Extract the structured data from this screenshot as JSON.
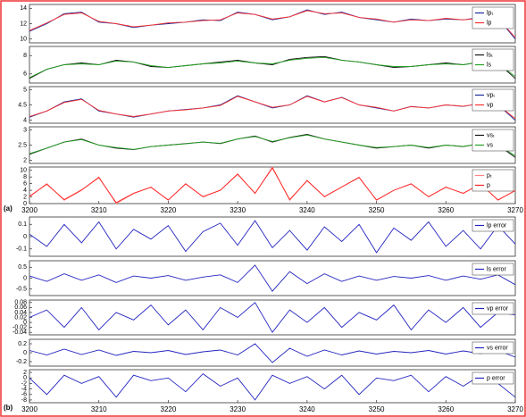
{
  "chart_data": [
    {
      "type": "line",
      "x": [
        3200,
        3202.5,
        3205,
        3207.5,
        3210,
        3212.5,
        3215,
        3217.5,
        3220,
        3222.5,
        3225,
        3227.5,
        3230,
        3232.5,
        3235,
        3237.5,
        3240,
        3242.5,
        3245,
        3247.5,
        3250,
        3252.5,
        3255,
        3257.5,
        3260,
        3262.5,
        3265,
        3267.5,
        3270
      ],
      "xlim": [
        3200,
        3270
      ],
      "ylim": [
        9.5,
        14.5
      ],
      "yticks": [
        10,
        12,
        14
      ],
      "series": [
        {
          "name": "lpₜ",
          "color": "#1a2a9a",
          "values": [
            11,
            12,
            13.3,
            13.5,
            12.2,
            12,
            11.5,
            11.8,
            12,
            12.2,
            12.5,
            12.4,
            13.5,
            13.2,
            12.5,
            12.9,
            13.8,
            13.2,
            13.5,
            12.8,
            12.5,
            12.2,
            12.6,
            12.4,
            12.6,
            12.5,
            12.8,
            12.7,
            10
          ]
        },
        {
          "name": "lp",
          "color": "#ff3030",
          "values": [
            11.1,
            12.1,
            13.2,
            13.4,
            12.3,
            12,
            11.6,
            11.8,
            12.1,
            12.2,
            12.4,
            12.5,
            13.4,
            13.2,
            12.6,
            12.9,
            13.7,
            13.3,
            13.4,
            12.8,
            12.6,
            12.2,
            12.5,
            12.4,
            12.7,
            12.5,
            12.7,
            12.7,
            10.2
          ]
        }
      ]
    },
    {
      "type": "line",
      "x": [
        3200,
        3202.5,
        3205,
        3207.5,
        3210,
        3212.5,
        3215,
        3217.5,
        3220,
        3222.5,
        3225,
        3227.5,
        3230,
        3232.5,
        3235,
        3237.5,
        3240,
        3242.5,
        3245,
        3247.5,
        3250,
        3252.5,
        3255,
        3257.5,
        3260,
        3262.5,
        3265,
        3267.5,
        3270
      ],
      "xlim": [
        3200,
        3270
      ],
      "ylim": [
        5,
        9
      ],
      "yticks": [
        6,
        8
      ],
      "series": [
        {
          "name": "lsₜ",
          "color": "#111111",
          "values": [
            5.5,
            6.5,
            7,
            7.2,
            7,
            7.5,
            7.3,
            6.8,
            6.7,
            6.9,
            7.1,
            7.3,
            7.5,
            7.2,
            7,
            7.6,
            7.8,
            7.9,
            7.5,
            7.3,
            7,
            6.7,
            6.8,
            7,
            7.2,
            7,
            7.3,
            7.2,
            5.5
          ]
        },
        {
          "name": "ls",
          "color": "#22a022",
          "values": [
            5.6,
            6.5,
            7,
            7.1,
            7,
            7.4,
            7.3,
            6.9,
            6.7,
            6.9,
            7.1,
            7.2,
            7.4,
            7.2,
            7.1,
            7.5,
            7.7,
            7.8,
            7.5,
            7.3,
            7,
            6.8,
            6.8,
            7,
            7.1,
            7,
            7.3,
            7.2,
            5.7
          ]
        }
      ]
    },
    {
      "type": "line",
      "x": [
        3200,
        3202.5,
        3205,
        3207.5,
        3210,
        3212.5,
        3215,
        3217.5,
        3220,
        3222.5,
        3225,
        3227.5,
        3230,
        3232.5,
        3235,
        3237.5,
        3240,
        3242.5,
        3245,
        3247.5,
        3250,
        3252.5,
        3255,
        3257.5,
        3260,
        3262.5,
        3265,
        3267.5,
        3270
      ],
      "xlim": [
        3200,
        3270
      ],
      "ylim": [
        3.9,
        5.1
      ],
      "yticks": [
        4,
        4.5,
        5
      ],
      "series": [
        {
          "name": "vpₜ",
          "color": "#1a2a9a",
          "values": [
            4.1,
            4.3,
            4.6,
            4.7,
            4.3,
            4.2,
            4.1,
            4.2,
            4.3,
            4.35,
            4.4,
            4.5,
            4.8,
            4.6,
            4.4,
            4.5,
            4.8,
            4.6,
            4.75,
            4.5,
            4.4,
            4.3,
            4.45,
            4.4,
            4.5,
            4.45,
            4.55,
            4.5,
            4
          ]
        },
        {
          "name": "vp",
          "color": "#ff3030",
          "values": [
            4.12,
            4.3,
            4.58,
            4.68,
            4.32,
            4.2,
            4.12,
            4.2,
            4.3,
            4.34,
            4.4,
            4.48,
            4.78,
            4.6,
            4.42,
            4.5,
            4.78,
            4.6,
            4.74,
            4.5,
            4.42,
            4.3,
            4.44,
            4.4,
            4.5,
            4.46,
            4.54,
            4.5,
            4.05
          ]
        }
      ]
    },
    {
      "type": "line",
      "x": [
        3200,
        3202.5,
        3205,
        3207.5,
        3210,
        3212.5,
        3215,
        3217.5,
        3220,
        3222.5,
        3225,
        3227.5,
        3230,
        3232.5,
        3235,
        3237.5,
        3240,
        3242.5,
        3245,
        3247.5,
        3250,
        3252.5,
        3255,
        3257.5,
        3260,
        3262.5,
        3265,
        3267.5,
        3270
      ],
      "xlim": [
        3200,
        3270
      ],
      "ylim": [
        1.9,
        3.1
      ],
      "yticks": [
        2,
        2.5,
        3
      ],
      "series": [
        {
          "name": "vsₜ",
          "color": "#111111",
          "values": [
            2.2,
            2.4,
            2.6,
            2.7,
            2.5,
            2.4,
            2.35,
            2.45,
            2.5,
            2.55,
            2.6,
            2.55,
            2.7,
            2.8,
            2.6,
            2.75,
            2.85,
            2.7,
            2.6,
            2.5,
            2.4,
            2.45,
            2.5,
            2.4,
            2.5,
            2.45,
            2.55,
            2.5,
            2.1
          ]
        },
        {
          "name": "vs",
          "color": "#22a022",
          "values": [
            2.22,
            2.4,
            2.6,
            2.68,
            2.5,
            2.42,
            2.36,
            2.45,
            2.5,
            2.54,
            2.6,
            2.56,
            2.7,
            2.78,
            2.62,
            2.74,
            2.83,
            2.7,
            2.6,
            2.5,
            2.42,
            2.45,
            2.5,
            2.42,
            2.5,
            2.46,
            2.55,
            2.5,
            2.15
          ]
        }
      ]
    },
    {
      "type": "line",
      "label": "(a)",
      "x": [
        3200,
        3202.5,
        3205,
        3207.5,
        3210,
        3212.5,
        3215,
        3217.5,
        3220,
        3222.5,
        3225,
        3227.5,
        3230,
        3232.5,
        3235,
        3237.5,
        3240,
        3242.5,
        3245,
        3247.5,
        3250,
        3252.5,
        3255,
        3257.5,
        3260,
        3262.5,
        3265,
        3267.5,
        3270
      ],
      "xlim": [
        3200,
        3270
      ],
      "ylim": [
        0,
        11
      ],
      "yticks": [
        0,
        2,
        4,
        6,
        8,
        10
      ],
      "xticks": [
        3200,
        3210,
        3220,
        3230,
        3240,
        3250,
        3260,
        3270
      ],
      "series": [
        {
          "name": "pₜ",
          "color": "#ff8080",
          "values": [
            2,
            6,
            1,
            4,
            8,
            0,
            3,
            5,
            1,
            6,
            2,
            4,
            9,
            3,
            11,
            1,
            7,
            2,
            5,
            8,
            1,
            4,
            6,
            2,
            5,
            3,
            6,
            1,
            4
          ]
        },
        {
          "name": "p",
          "color": "#ff2020",
          "values": [
            2.2,
            5.8,
            1.2,
            4.1,
            7.8,
            0.3,
            3.1,
            4.9,
            1.1,
            5.9,
            2.1,
            4,
            8.8,
            3.1,
            10.7,
            1.2,
            6.9,
            2.1,
            5,
            7.8,
            1.1,
            4,
            5.9,
            2.1,
            4.9,
            3.1,
            5.9,
            1.1,
            3.9
          ]
        }
      ]
    },
    {
      "type": "line",
      "x": [
        3200,
        3202.5,
        3205,
        3207.5,
        3210,
        3212.5,
        3215,
        3217.5,
        3220,
        3222.5,
        3225,
        3227.5,
        3230,
        3232.5,
        3235,
        3237.5,
        3240,
        3242.5,
        3245,
        3247.5,
        3250,
        3252.5,
        3255,
        3257.5,
        3260,
        3262.5,
        3265,
        3267.5,
        3270
      ],
      "xlim": [
        3200,
        3270
      ],
      "ylim": [
        -0.16,
        0.16
      ],
      "yticks": [
        -0.1,
        0,
        0.1
      ],
      "series": [
        {
          "name": "lp error",
          "color": "#2424c0",
          "values": [
            0.02,
            -0.08,
            0.1,
            -0.05,
            0.12,
            -0.1,
            0.06,
            -0.02,
            0.09,
            -0.12,
            0.04,
            0.11,
            -0.07,
            0.13,
            -0.09,
            0.05,
            -0.11,
            0.08,
            -0.04,
            0.1,
            -0.13,
            0.07,
            -0.03,
            0.12,
            -0.08,
            0.05,
            -0.1,
            0.09,
            -0.06
          ]
        }
      ]
    },
    {
      "type": "line",
      "x": [
        3200,
        3202.5,
        3205,
        3207.5,
        3210,
        3212.5,
        3215,
        3217.5,
        3220,
        3222.5,
        3225,
        3227.5,
        3230,
        3232.5,
        3235,
        3237.5,
        3240,
        3242.5,
        3245,
        3247.5,
        3250,
        3252.5,
        3255,
        3257.5,
        3260,
        3262.5,
        3265,
        3267.5,
        3270
      ],
      "xlim": [
        3200,
        3270
      ],
      "ylim": [
        -0.8,
        0.8
      ],
      "yticks": [
        -0.5,
        0,
        0.5
      ],
      "series": [
        {
          "name": "ls error",
          "color": "#2424c0",
          "values": [
            0.1,
            -0.15,
            0.2,
            -0.1,
            0.15,
            -0.2,
            0.1,
            0,
            0.12,
            -0.1,
            0.05,
            0.15,
            -0.2,
            0.6,
            -0.6,
            0.3,
            -0.25,
            0.2,
            -0.15,
            0.1,
            -0.1,
            0.08,
            0,
            0.12,
            -0.1,
            0.1,
            -0.05,
            0.15,
            -0.3
          ]
        }
      ]
    },
    {
      "type": "line",
      "x": [
        3200,
        3202.5,
        3205,
        3207.5,
        3210,
        3212.5,
        3215,
        3217.5,
        3220,
        3222.5,
        3225,
        3227.5,
        3230,
        3232.5,
        3235,
        3237.5,
        3240,
        3242.5,
        3245,
        3247.5,
        3250,
        3252.5,
        3255,
        3257.5,
        3260,
        3262.5,
        3265,
        3267.5,
        3270
      ],
      "xlim": [
        3200,
        3270
      ],
      "ylim": [
        -0.05,
        0.09
      ],
      "yticks": [
        -0.04,
        -0.02,
        0,
        0.02,
        0.04,
        0.06,
        0.08
      ],
      "series": [
        {
          "name": "vp error",
          "color": "#2424c0",
          "values": [
            0.02,
            0.05,
            -0.02,
            0.06,
            -0.03,
            0.04,
            0.01,
            0.07,
            -0.01,
            0.05,
            -0.03,
            0.06,
            0.02,
            0.08,
            -0.04,
            0.05,
            0,
            0.06,
            -0.02,
            0.04,
            0.01,
            0.07,
            -0.03,
            0.05,
            0,
            0.06,
            -0.02,
            0.04,
            0.03
          ]
        }
      ]
    },
    {
      "type": "line",
      "x": [
        3200,
        3202.5,
        3205,
        3207.5,
        3210,
        3212.5,
        3215,
        3217.5,
        3220,
        3222.5,
        3225,
        3227.5,
        3230,
        3232.5,
        3235,
        3237.5,
        3240,
        3242.5,
        3245,
        3247.5,
        3250,
        3252.5,
        3255,
        3257.5,
        3260,
        3262.5,
        3265,
        3267.5,
        3270
      ],
      "xlim": [
        3200,
        3270
      ],
      "ylim": [
        -0.3,
        0.3
      ],
      "yticks": [
        -0.2,
        0,
        0.2
      ],
      "series": [
        {
          "name": "vs error",
          "color": "#2424c0",
          "values": [
            0.05,
            -0.05,
            0.08,
            -0.04,
            0.06,
            -0.06,
            0.03,
            0,
            0.05,
            -0.04,
            0.02,
            0.06,
            -0.05,
            0.2,
            -0.22,
            0.1,
            -0.08,
            0.06,
            -0.05,
            0.04,
            -0.03,
            0.03,
            0,
            0.05,
            -0.03,
            0.04,
            -0.02,
            0.05,
            -0.1
          ]
        }
      ]
    },
    {
      "type": "line",
      "label": "(b)",
      "x": [
        3200,
        3202.5,
        3205,
        3207.5,
        3210,
        3212.5,
        3215,
        3217.5,
        3220,
        3222.5,
        3225,
        3227.5,
        3230,
        3232.5,
        3235,
        3237.5,
        3240,
        3242.5,
        3245,
        3247.5,
        3250,
        3252.5,
        3255,
        3257.5,
        3260,
        3262.5,
        3265,
        3267.5,
        3270
      ],
      "xlim": [
        3200,
        3270
      ],
      "ylim": [
        -9,
        3
      ],
      "yticks": [
        -8,
        -6,
        -4,
        -2,
        0,
        2
      ],
      "xticks": [
        3200,
        3210,
        3220,
        3230,
        3240,
        3250,
        3260,
        3270
      ],
      "series": [
        {
          "name": "p error",
          "color": "#2424c0",
          "values": [
            0,
            -6,
            1,
            -2,
            0.5,
            -7,
            1,
            -1,
            0,
            -5,
            1.5,
            -3,
            0,
            -8,
            1,
            -2,
            0.5,
            -4,
            1,
            -6,
            0,
            -1,
            1,
            -5,
            0.5,
            -3,
            1,
            -2,
            -7
          ]
        }
      ]
    }
  ]
}
